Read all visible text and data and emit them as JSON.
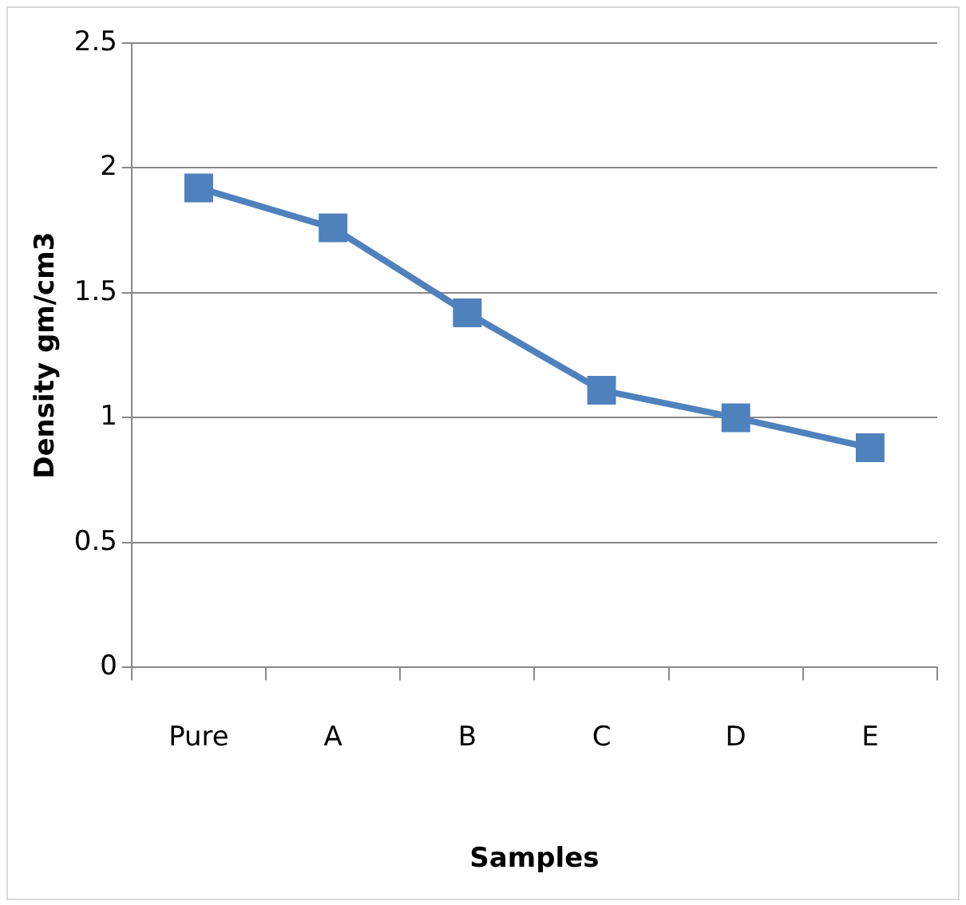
{
  "chart_data": {
    "type": "line",
    "xlabel": "Samples",
    "ylabel": "Density gm/cm3",
    "categories": [
      "Pure",
      "A",
      "B",
      "C",
      "D",
      "E"
    ],
    "series": [
      {
        "color": "#4f81bd",
        "values": [
          1.92,
          1.76,
          1.42,
          1.11,
          1.0,
          0.88
        ]
      }
    ],
    "ylim": [
      0,
      2.5
    ],
    "yticks": [
      0,
      0.5,
      1,
      1.5,
      2,
      2.5
    ],
    "grid": "y",
    "legend": false,
    "marker": "square",
    "line_style": "solid"
  }
}
